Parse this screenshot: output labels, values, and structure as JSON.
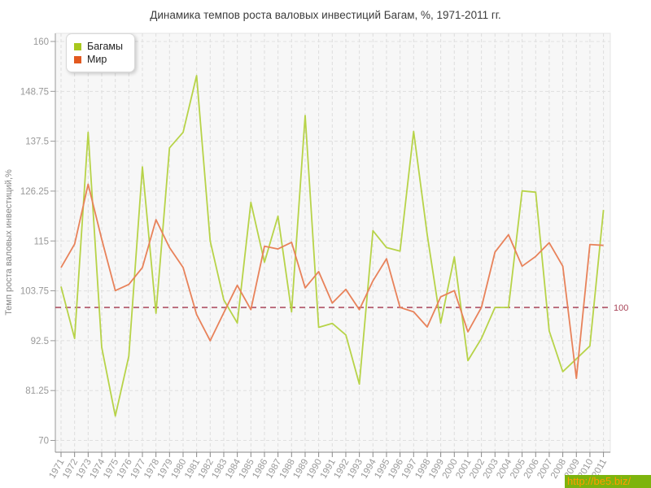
{
  "title": "Динамика темпов роста валовых инвестиций Багам, %, 1971-2011 гг.",
  "y_axis_label": "Темп роста валовых инвестиций,%",
  "watermark": "http://be5.biz/",
  "ref_line": {
    "value": 100,
    "label": "100",
    "color": "#a84458"
  },
  "legend": {
    "items": [
      {
        "label": "Багамы",
        "color": "#a8c81e"
      },
      {
        "label": "Мир",
        "color": "#e2591f"
      }
    ]
  },
  "chart_data": {
    "type": "line",
    "title": "Динамика темпов роста валовых инвестиций Багам, %, 1971-2011 гг.",
    "xlabel": "",
    "ylabel": "Темп роста валовых инвестиций,%",
    "ylim": [
      70,
      160
    ],
    "yticks": [
      70,
      81.25,
      92.5,
      103.75,
      115,
      126.25,
      137.5,
      148.75,
      160
    ],
    "grid": true,
    "legend_position": "top-left",
    "reference_line": 100,
    "x": [
      1971,
      1972,
      1973,
      1974,
      1975,
      1976,
      1977,
      1978,
      1979,
      1980,
      1981,
      1982,
      1983,
      1984,
      1985,
      1986,
      1987,
      1988,
      1989,
      1990,
      1991,
      1992,
      1993,
      1994,
      1995,
      1996,
      1997,
      1998,
      1999,
      2000,
      2001,
      2002,
      2003,
      2004,
      2005,
      2006,
      2007,
      2008,
      2009,
      2010,
      2011
    ],
    "series": [
      {
        "name": "Багамы",
        "color": "#b7d348",
        "values": [
          104.7,
          93,
          139.5,
          91,
          75.5,
          89,
          131.7,
          98.7,
          136,
          139.5,
          152.3,
          115,
          101.7,
          96.5,
          123.7,
          110.2,
          120.6,
          99,
          143.3,
          95.5,
          96.4,
          93.8,
          82.7,
          117.3,
          113.5,
          112.7,
          139.7,
          116.4,
          96.5,
          111.4,
          88,
          93,
          100,
          100,
          126.3,
          126,
          94.7,
          85.5,
          88.4,
          91.3,
          122
        ]
      },
      {
        "name": "Мир",
        "color": "#e8825a",
        "values": [
          109,
          114.3,
          127.8,
          115.4,
          103.8,
          105.2,
          109,
          119.8,
          113.5,
          109,
          98.4,
          92.5,
          98.8,
          105,
          99.5,
          113.8,
          113.2,
          114.7,
          104.4,
          108.1,
          101,
          104.1,
          99.5,
          106,
          111,
          100,
          99,
          95.6,
          102.4,
          103.8,
          94.5,
          100,
          112.5,
          116.4,
          109.3,
          111.5,
          114.6,
          109.3,
          84,
          114.2,
          114
        ]
      }
    ]
  }
}
